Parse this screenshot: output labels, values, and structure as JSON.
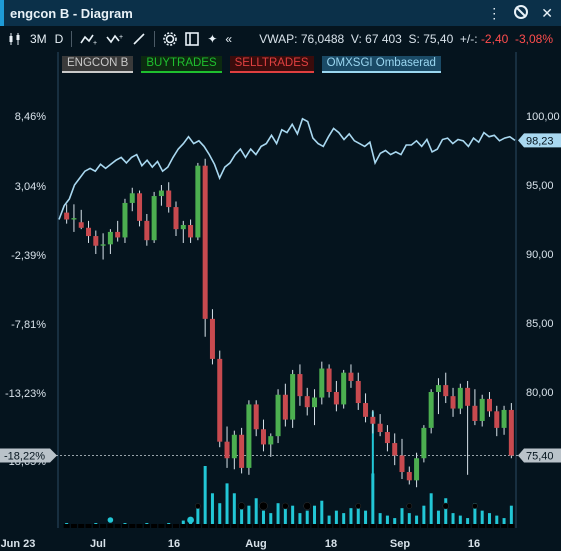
{
  "window": {
    "title": "engcon B - Diagram"
  },
  "toolbar": {
    "period_3m": "3M",
    "period_d": "D",
    "vwap_label": "VWAP:",
    "vwap_value": "76,0488",
    "volume_label": "V:",
    "volume_value": "67 403",
    "last_label": "S:",
    "last_value": "75,40",
    "change_label": "+/-:",
    "change_value": "-2,40",
    "change_pct": "-3,08%"
  },
  "legend": [
    {
      "label": "ENGCON B",
      "color": "#c9c9c9",
      "bg": "#3a3a3a"
    },
    {
      "label": "BUYTRADES",
      "color": "#1fbf2f",
      "bg": "#0c2a10"
    },
    {
      "label": "SELLTRADES",
      "color": "#e04040",
      "bg": "#3a0c0c"
    },
    {
      "label": "OMXSGI Ombaserad",
      "color": "#9ad6f0",
      "bg": "#1a4a66"
    }
  ],
  "colors": {
    "up": "#4caf50",
    "down": "#c84a4f",
    "index_line": "#a9d8f0",
    "volume": "#22c7d6",
    "current_price_badge": "#b9c2c9"
  },
  "chart_data": {
    "type": "candlestick",
    "left_axis": {
      "ticks": [
        "8,46%",
        "3,04%",
        "-2,39%",
        "-7,81%",
        "-13,23%",
        "-18,65%"
      ],
      "current_label": "-18,22%"
    },
    "right_axis": {
      "ticks": [
        100,
        95,
        90,
        85,
        80,
        75
      ],
      "current_value": "75,40",
      "ylim": [
        72.5,
        104
      ]
    },
    "index_current": "98,23",
    "x_labels": [
      "Jun 23",
      "Jul",
      "16",
      "Aug",
      "18",
      "Sep",
      "16"
    ],
    "candles": [
      [
        93.0,
        93.6,
        92.2,
        92.5
      ],
      [
        92.5,
        93.6,
        91.6,
        92.6
      ],
      [
        92.3,
        93.2,
        91.8,
        91.9
      ],
      [
        91.9,
        92.4,
        90.8,
        91.3
      ],
      [
        91.3,
        91.7,
        90.0,
        90.6
      ],
      [
        90.6,
        91.5,
        89.6,
        90.7
      ],
      [
        90.7,
        91.8,
        90.0,
        91.6
      ],
      [
        91.6,
        92.4,
        90.9,
        91.2
      ],
      [
        91.2,
        94.0,
        90.8,
        93.7
      ],
      [
        93.7,
        94.8,
        93.1,
        94.4
      ],
      [
        94.4,
        94.6,
        92.0,
        92.4
      ],
      [
        92.4,
        92.9,
        90.6,
        91.0
      ],
      [
        91.0,
        94.5,
        90.8,
        94.2
      ],
      [
        94.2,
        95.0,
        93.5,
        94.6
      ],
      [
        94.6,
        95.2,
        93.0,
        93.4
      ],
      [
        93.4,
        93.8,
        91.3,
        91.8
      ],
      [
        91.8,
        92.4,
        90.8,
        92.1
      ],
      [
        92.1,
        92.5,
        90.8,
        91.2
      ],
      [
        91.2,
        96.6,
        91.0,
        96.4
      ],
      [
        96.4,
        96.9,
        84.0,
        85.3
      ],
      [
        85.3,
        86.0,
        82.0,
        82.4
      ],
      [
        82.4,
        83.0,
        76.0,
        76.4
      ],
      [
        76.4,
        77.5,
        74.5,
        75.2
      ],
      [
        75.2,
        77.2,
        74.4,
        76.9
      ],
      [
        76.9,
        77.4,
        74.1,
        74.5
      ],
      [
        74.5,
        79.4,
        74.0,
        79.1
      ],
      [
        79.1,
        79.4,
        76.8,
        77.3
      ],
      [
        77.3,
        78.0,
        75.7,
        76.2
      ],
      [
        76.2,
        77.0,
        75.3,
        76.8
      ],
      [
        76.8,
        80.2,
        76.3,
        79.8
      ],
      [
        79.8,
        80.6,
        77.5,
        78.0
      ],
      [
        78.0,
        81.6,
        77.4,
        81.3
      ],
      [
        81.3,
        82.0,
        79.0,
        79.7
      ],
      [
        79.7,
        80.3,
        78.3,
        78.9
      ],
      [
        78.9,
        80.2,
        77.6,
        79.6
      ],
      [
        79.6,
        82.2,
        79.1,
        81.7
      ],
      [
        81.7,
        82.0,
        79.6,
        80.0
      ],
      [
        80.0,
        80.8,
        78.6,
        79.1
      ],
      [
        79.1,
        81.6,
        78.8,
        81.4
      ],
      [
        81.4,
        82.0,
        80.3,
        80.8
      ],
      [
        80.8,
        81.4,
        78.7,
        79.2
      ],
      [
        79.2,
        79.9,
        77.8,
        78.2
      ],
      [
        78.2,
        78.7,
        77.0,
        77.7
      ],
      [
        77.7,
        78.4,
        76.8,
        77.1
      ],
      [
        77.1,
        77.6,
        75.7,
        76.3
      ],
      [
        76.3,
        77.0,
        74.7,
        75.4
      ],
      [
        75.4,
        76.6,
        73.7,
        74.2
      ],
      [
        74.2,
        74.6,
        73.3,
        73.6
      ],
      [
        73.6,
        75.6,
        73.1,
        75.2
      ],
      [
        75.2,
        77.6,
        74.9,
        77.4
      ],
      [
        77.4,
        80.2,
        77.0,
        80.0
      ],
      [
        80.0,
        81.0,
        78.4,
        80.5
      ],
      [
        80.5,
        81.4,
        79.2,
        79.7
      ],
      [
        79.7,
        80.3,
        78.2,
        78.8
      ],
      [
        78.8,
        80.6,
        78.4,
        80.3
      ],
      [
        80.3,
        80.8,
        74.0,
        79.0
      ],
      [
        79.0,
        80.2,
        77.6,
        77.9
      ],
      [
        77.9,
        79.8,
        77.5,
        79.5
      ],
      [
        79.5,
        80.0,
        78.2,
        78.6
      ],
      [
        78.6,
        79.0,
        76.8,
        77.4
      ],
      [
        77.4,
        79.0,
        76.9,
        78.7
      ],
      [
        78.7,
        79.2,
        75.2,
        75.4
      ]
    ],
    "index_line": [
      92.5,
      93.5,
      94.0,
      95.0,
      95.5,
      96.0,
      96.2,
      96.0,
      96.5,
      96.2,
      96.5,
      96.8,
      97.0,
      96.6,
      97.0,
      97.2,
      96.4,
      96.8,
      96.3,
      96.7,
      96.0,
      96.3,
      97.0,
      97.6,
      98.0,
      98.5,
      98.0,
      98.2,
      97.8,
      97.2,
      96.5,
      95.5,
      96.3,
      96.6,
      97.2,
      97.6,
      97.0,
      97.6,
      97.2,
      97.8,
      98.0,
      98.6,
      98.0,
      99.0,
      98.8,
      99.4,
      98.7,
      99.8,
      99.6,
      98.4,
      98.0,
      97.8,
      98.5,
      99.1,
      98.8,
      98.3,
      98.7,
      98.2,
      98.0,
      97.8,
      98.1,
      96.6,
      97.3,
      97.5,
      97.2,
      97.4,
      97.2,
      97.9,
      97.9,
      98.2,
      97.8,
      98.3,
      97.4,
      97.6,
      98.3,
      98.4,
      98.0,
      98.3,
      98.2,
      97.8,
      98.4,
      98.1,
      98.8,
      98.5,
      98.6,
      98.2,
      98.4,
      98.5,
      98.23
    ],
    "volume": [
      2,
      1,
      1,
      1,
      2,
      1,
      1,
      1,
      2,
      1,
      1,
      2,
      1,
      1,
      2,
      1,
      3,
      2,
      8,
      25,
      14,
      10,
      18,
      14,
      10,
      9,
      12,
      7,
      6,
      10,
      8,
      9,
      6,
      7,
      9,
      11,
      5,
      7,
      6,
      8,
      9,
      7,
      22,
      6,
      5,
      4,
      8,
      6,
      5,
      9,
      14,
      7,
      12,
      6,
      5,
      4,
      10,
      7,
      6,
      5,
      4,
      9
    ],
    "trade_markers": [
      {
        "i": 18,
        "size": 2.6
      },
      {
        "i": 24,
        "size": 3.4
      },
      {
        "i": 27,
        "size": 4.0
      },
      {
        "i": 30,
        "size": 3.0
      },
      {
        "i": 33,
        "size": 3.6
      },
      {
        "i": 40,
        "size": 2.6
      },
      {
        "i": 47,
        "size": 2.6
      },
      {
        "i": 52,
        "size": 3.0
      },
      {
        "i": 56,
        "size": 2.6
      }
    ],
    "buy_markers": [
      {
        "i": 6,
        "size": 2.8
      },
      {
        "i": 17,
        "size": 3.4
      }
    ]
  }
}
